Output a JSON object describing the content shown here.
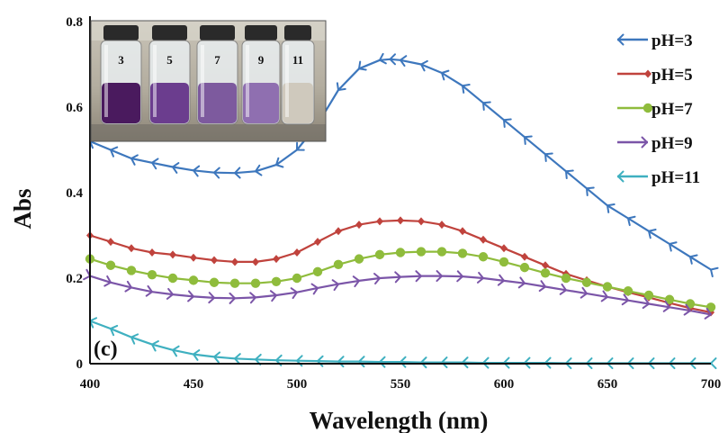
{
  "chart_data": {
    "type": "line",
    "xlabel": "Wavelength (nm)",
    "ylabel": "Abs",
    "panel_label": "(c)",
    "xlim": [
      400,
      700
    ],
    "ylim": [
      0,
      0.8
    ],
    "xticks": [
      "400",
      "450",
      "500",
      "550",
      "600",
      "650",
      "700"
    ],
    "yticks": [
      "0",
      "0.2",
      "0.4",
      "0.6",
      "0.8"
    ],
    "legend_position": "top-right",
    "grid": false,
    "series": [
      {
        "name": "pH=3",
        "color": "#3d77bd",
        "marker": "arrow-left",
        "x": [
          400,
          410,
          420,
          430,
          440,
          450,
          460,
          470,
          480,
          490,
          500,
          510,
          520,
          530,
          540,
          545,
          550,
          560,
          570,
          580,
          590,
          600,
          610,
          620,
          630,
          640,
          650,
          660,
          670,
          680,
          690,
          700
        ],
        "y": [
          0.52,
          0.5,
          0.48,
          0.47,
          0.46,
          0.452,
          0.447,
          0.446,
          0.45,
          0.465,
          0.5,
          0.56,
          0.64,
          0.69,
          0.71,
          0.712,
          0.71,
          0.7,
          0.68,
          0.65,
          0.61,
          0.57,
          0.53,
          0.49,
          0.45,
          0.41,
          0.37,
          0.34,
          0.31,
          0.28,
          0.25,
          0.22
        ]
      },
      {
        "name": "pH=5",
        "color": "#c0433d",
        "marker": "diamond",
        "x": [
          400,
          410,
          420,
          430,
          440,
          450,
          460,
          470,
          480,
          490,
          500,
          510,
          520,
          530,
          540,
          550,
          560,
          570,
          580,
          590,
          600,
          610,
          620,
          630,
          640,
          650,
          660,
          670,
          680,
          690,
          700
        ],
        "y": [
          0.3,
          0.285,
          0.27,
          0.26,
          0.255,
          0.248,
          0.242,
          0.238,
          0.238,
          0.245,
          0.26,
          0.285,
          0.31,
          0.325,
          0.333,
          0.335,
          0.333,
          0.325,
          0.31,
          0.29,
          0.27,
          0.25,
          0.23,
          0.21,
          0.195,
          0.18,
          0.167,
          0.155,
          0.142,
          0.13,
          0.12
        ]
      },
      {
        "name": "pH=7",
        "color": "#8fbc3c",
        "marker": "circle",
        "x": [
          400,
          410,
          420,
          430,
          440,
          450,
          460,
          470,
          480,
          490,
          500,
          510,
          520,
          530,
          540,
          550,
          560,
          570,
          580,
          590,
          600,
          610,
          620,
          630,
          640,
          650,
          660,
          670,
          680,
          690,
          700
        ],
        "y": [
          0.245,
          0.23,
          0.218,
          0.208,
          0.2,
          0.195,
          0.19,
          0.188,
          0.188,
          0.192,
          0.2,
          0.215,
          0.232,
          0.245,
          0.255,
          0.26,
          0.262,
          0.262,
          0.258,
          0.25,
          0.238,
          0.225,
          0.212,
          0.2,
          0.19,
          0.18,
          0.17,
          0.16,
          0.15,
          0.14,
          0.132
        ]
      },
      {
        "name": "pH=9",
        "color": "#7b55a8",
        "marker": "arrow-right",
        "x": [
          400,
          410,
          420,
          430,
          440,
          450,
          460,
          470,
          480,
          490,
          500,
          510,
          520,
          530,
          540,
          550,
          560,
          570,
          580,
          590,
          600,
          610,
          620,
          630,
          640,
          650,
          660,
          670,
          680,
          690,
          700
        ],
        "y": [
          0.205,
          0.19,
          0.178,
          0.168,
          0.162,
          0.157,
          0.154,
          0.153,
          0.155,
          0.16,
          0.167,
          0.177,
          0.186,
          0.194,
          0.2,
          0.203,
          0.205,
          0.205,
          0.204,
          0.2,
          0.194,
          0.188,
          0.18,
          0.172,
          0.164,
          0.156,
          0.148,
          0.14,
          0.132,
          0.124,
          0.115
        ]
      },
      {
        "name": "pH=11",
        "color": "#3fb0c0",
        "marker": "arrow-left",
        "x": [
          400,
          410,
          420,
          430,
          440,
          450,
          460,
          470,
          480,
          490,
          500,
          510,
          520,
          530,
          540,
          550,
          560,
          570,
          580,
          590,
          600,
          610,
          620,
          630,
          640,
          650,
          660,
          670,
          680,
          690,
          700
        ],
        "y": [
          0.1,
          0.082,
          0.062,
          0.045,
          0.032,
          0.022,
          0.016,
          0.012,
          0.01,
          0.008,
          0.007,
          0.006,
          0.005,
          0.005,
          0.004,
          0.004,
          0.003,
          0.003,
          0.003,
          0.002,
          0.002,
          0.002,
          0.002,
          0.001,
          0.001,
          0.001,
          0.001,
          0.001,
          0.001,
          0.001,
          0.001
        ]
      }
    ]
  },
  "inset": {
    "vial_labels": [
      "3",
      "5",
      "7",
      "9",
      "11"
    ],
    "liquid_colors": [
      "#4a1a5e",
      "#6b3d8e",
      "#7d5a9e",
      "#8f6fb0",
      "#cfc9bd"
    ]
  }
}
